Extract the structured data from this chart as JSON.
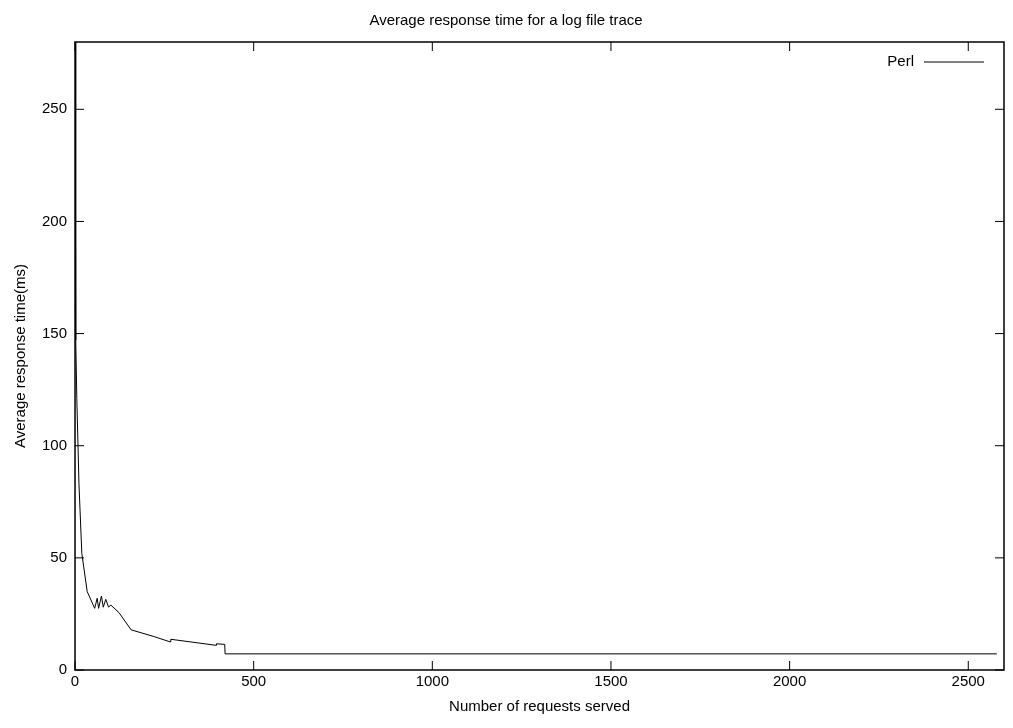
{
  "chart_data": {
    "type": "line",
    "title": "Average response time for a log file trace",
    "xlabel": "Number of requests served",
    "ylabel": "Average response time(ms)",
    "series": [
      {
        "name": "Perl",
        "color": "#000000",
        "x": [
          0,
          2,
          5,
          11,
          19,
          34,
          55,
          62,
          66,
          74,
          79,
          86,
          94,
          100,
          123,
          157,
          219,
          267,
          268,
          395,
          396,
          419,
          420,
          2580
        ],
        "values": [
          280,
          147,
          121,
          83,
          52,
          35,
          27.5,
          32,
          27.5,
          33,
          28,
          31.5,
          28,
          29,
          25.6,
          17.9,
          15,
          12.5,
          13.7,
          11,
          11.7,
          11.4,
          7.2,
          7.2
        ]
      }
    ],
    "xlim": [
      0,
      2600
    ],
    "xticks": [
      0,
      500,
      1000,
      1500,
      2000,
      2500
    ],
    "ylim": [
      0,
      280
    ],
    "yticks": [
      0,
      50,
      100,
      150,
      200,
      250
    ],
    "legend": "top right",
    "grid": false,
    "marker": "none",
    "line_style": "solid"
  }
}
